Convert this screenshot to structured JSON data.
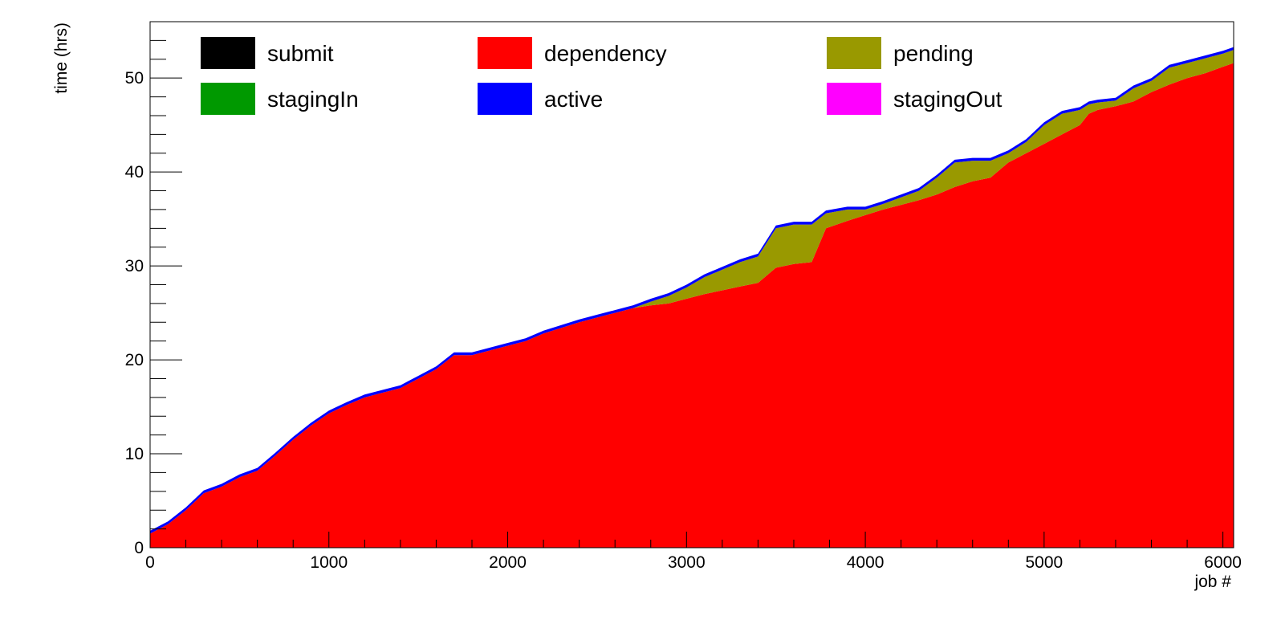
{
  "chart_data": {
    "type": "area",
    "xlabel": "job #",
    "ylabel": "time (hrs)",
    "xlim": [
      0,
      6060
    ],
    "ylim": [
      0,
      56
    ],
    "x_ticks": [
      0,
      1000,
      2000,
      3000,
      4000,
      5000,
      6000
    ],
    "y_ticks": [
      0,
      10,
      20,
      30,
      40,
      50
    ],
    "grid": false,
    "legend_position": "top",
    "x": [
      0,
      100,
      200,
      300,
      400,
      500,
      600,
      700,
      800,
      900,
      1000,
      1100,
      1200,
      1300,
      1400,
      1500,
      1600,
      1700,
      1800,
      1900,
      2000,
      2100,
      2200,
      2300,
      2400,
      2500,
      2600,
      2700,
      2800,
      2900,
      3000,
      3100,
      3200,
      3300,
      3400,
      3500,
      3600,
      3700,
      3780,
      3900,
      4000,
      4100,
      4200,
      4300,
      4400,
      4500,
      4600,
      4700,
      4800,
      4900,
      5000,
      5100,
      5200,
      5250,
      5300,
      5400,
      5500,
      5600,
      5700,
      5800,
      5900,
      6000,
      6060
    ],
    "series": [
      {
        "name": "submit",
        "color": "#000000",
        "values": [
          0,
          0,
          0,
          0,
          0,
          0,
          0,
          0,
          0,
          0,
          0,
          0,
          0,
          0,
          0,
          0,
          0,
          0,
          0,
          0,
          0,
          0,
          0,
          0,
          0,
          0,
          0,
          0,
          0,
          0,
          0,
          0,
          0,
          0,
          0,
          0,
          0,
          0,
          0,
          0,
          0,
          0,
          0,
          0,
          0,
          0,
          0,
          0,
          0,
          0,
          0,
          0,
          0,
          0,
          0,
          0,
          0,
          0,
          0,
          0,
          0,
          0,
          0
        ]
      },
      {
        "name": "dependency",
        "color": "#ff0000",
        "values": [
          1.5,
          2.5,
          4.0,
          5.8,
          6.5,
          7.5,
          8.2,
          9.8,
          11.5,
          13.0,
          14.3,
          15.2,
          16.0,
          16.5,
          17.0,
          18.0,
          19.0,
          20.5,
          20.5,
          21.0,
          21.5,
          22.0,
          22.8,
          23.4,
          24.0,
          24.5,
          25.0,
          25.5,
          25.8,
          26.0,
          26.5,
          27.0,
          27.4,
          27.8,
          28.2,
          29.8,
          30.2,
          30.4,
          34.0,
          34.8,
          35.4,
          36.0,
          36.5,
          37.0,
          37.6,
          38.4,
          39.0,
          39.4,
          41.0,
          42.0,
          43.0,
          44.0,
          45.0,
          46.2,
          46.6,
          47.0,
          47.5,
          48.5,
          49.3,
          50.0,
          50.5,
          51.2,
          51.6
        ]
      },
      {
        "name": "pending",
        "color": "#999900",
        "values": [
          0,
          0,
          0,
          0,
          0,
          0,
          0,
          0,
          0,
          0,
          0,
          0,
          0,
          0,
          0,
          0,
          0,
          0,
          0,
          0,
          0,
          0,
          0,
          0,
          0,
          0,
          0,
          0,
          0.4,
          0.8,
          1.2,
          1.8,
          2.2,
          2.6,
          2.8,
          4.2,
          4.2,
          4.0,
          1.6,
          1.2,
          0.6,
          0.6,
          0.8,
          1.0,
          1.8,
          2.6,
          2.2,
          1.8,
          1.0,
          1.2,
          2.0,
          2.2,
          1.6,
          1.0,
          0.8,
          0.6,
          1.4,
          1.2,
          1.8,
          1.6,
          1.6,
          1.4,
          1.4
        ]
      },
      {
        "name": "stagingIn",
        "color": "#009900",
        "values": [
          0,
          0,
          0,
          0,
          0,
          0,
          0,
          0,
          0,
          0,
          0,
          0,
          0,
          0,
          0,
          0,
          0,
          0,
          0,
          0,
          0,
          0,
          0,
          0,
          0,
          0,
          0,
          0,
          0,
          0,
          0,
          0,
          0,
          0,
          0,
          0,
          0,
          0,
          0,
          0,
          0,
          0,
          0,
          0,
          0,
          0,
          0,
          0,
          0,
          0,
          0,
          0,
          0,
          0,
          0,
          0,
          0,
          0,
          0,
          0,
          0,
          0,
          0
        ]
      },
      {
        "name": "active",
        "color": "#0000ff",
        "values": [
          0.3,
          0.3,
          0.3,
          0.3,
          0.3,
          0.3,
          0.3,
          0.3,
          0.3,
          0.3,
          0.3,
          0.3,
          0.3,
          0.3,
          0.3,
          0.3,
          0.3,
          0.3,
          0.3,
          0.3,
          0.3,
          0.3,
          0.3,
          0.3,
          0.3,
          0.3,
          0.3,
          0.3,
          0.3,
          0.3,
          0.3,
          0.3,
          0.3,
          0.3,
          0.3,
          0.3,
          0.3,
          0.3,
          0.3,
          0.3,
          0.3,
          0.3,
          0.3,
          0.3,
          0.3,
          0.3,
          0.3,
          0.3,
          0.3,
          0.3,
          0.3,
          0.3,
          0.3,
          0.3,
          0.3,
          0.3,
          0.3,
          0.3,
          0.3,
          0.3,
          0.3,
          0.3,
          0.3
        ]
      },
      {
        "name": "stagingOut",
        "color": "#ff00ff",
        "values": [
          0,
          0,
          0,
          0,
          0,
          0,
          0,
          0,
          0,
          0,
          0,
          0,
          0,
          0,
          0,
          0,
          0,
          0,
          0,
          0,
          0,
          0,
          0,
          0,
          0,
          0,
          0,
          0,
          0,
          0,
          0,
          0,
          0,
          0,
          0,
          0,
          0,
          0,
          0,
          0,
          0,
          0,
          0,
          0,
          0,
          0,
          0,
          0,
          0,
          0,
          0,
          0,
          0,
          0,
          0,
          0,
          0,
          0,
          0,
          0,
          0,
          0,
          0
        ]
      }
    ]
  }
}
